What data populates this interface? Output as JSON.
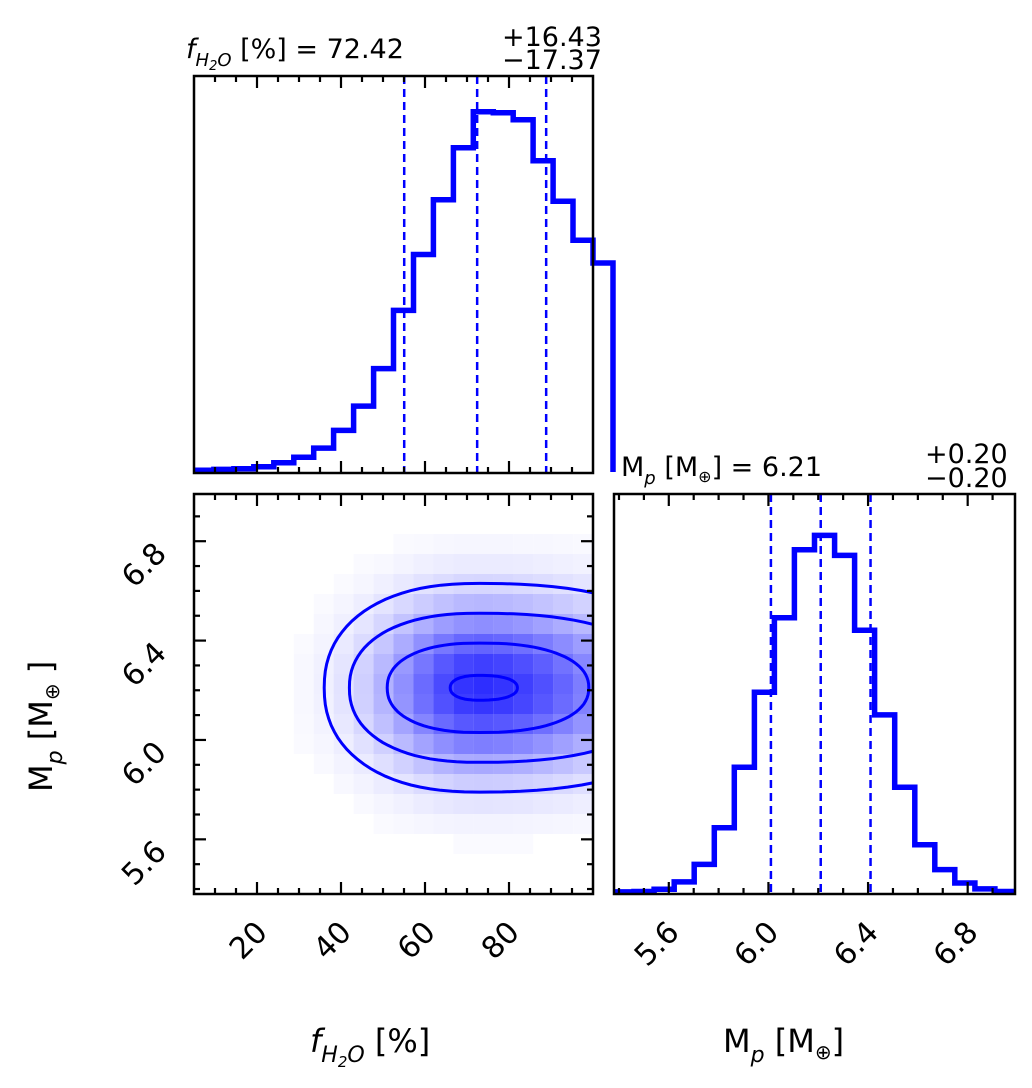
{
  "figure": {
    "type": "corner_plot"
  },
  "colors": {
    "series": "#0000ff",
    "frame": "#000000"
  },
  "titles": {
    "fh2o": {
      "main": "= 72.42",
      "upper": "+16.43",
      "lower": "−17.37"
    },
    "mp": {
      "main": "M",
      "sub": "p",
      "bracket": " [M",
      "sub2": "⊕",
      "tail": "] = 6.21",
      "upper": "+0.20",
      "lower": "−0.20"
    }
  },
  "axis_labels": {
    "fh2o": {
      "bracket": " [%]"
    },
    "mp_x": {
      "main": "M",
      "sub": "p",
      "bracket": " [M",
      "sub2": "⊕",
      "tail": "]"
    },
    "mp_y": {
      "main": "M",
      "sub": "p",
      "bracket": " [M",
      "sub2": "⊕",
      "tail": " ]"
    }
  },
  "chart_data": [
    {
      "type": "histogram",
      "variable": "f_H2O",
      "xlim": [
        5,
        100
      ],
      "x_ticks": [
        "20",
        "40",
        "60",
        "80"
      ],
      "bin_width": 4.75,
      "bin_start": 5,
      "counts": [
        0.005,
        0.007,
        0.009,
        0.014,
        0.025,
        0.04,
        0.065,
        0.113,
        0.179,
        0.281,
        0.439,
        0.591,
        0.74,
        0.881,
        0.979,
        0.976,
        0.957,
        0.846,
        0.736,
        0.63,
        0.568
      ],
      "quantiles": [
        55.05,
        72.42,
        88.85
      ],
      "median": 72.42,
      "err_plus": 16.43,
      "err_minus": 17.37
    },
    {
      "type": "heatmap",
      "xvar": "f_H2O",
      "yvar": "M_p",
      "xlim": [
        5,
        100
      ],
      "ylim": [
        5.38,
        6.99
      ],
      "x_ticks": [
        "20",
        "40",
        "60",
        "80"
      ],
      "y_ticks": [
        "5.6",
        "6.0",
        "6.4",
        "6.8"
      ],
      "density_peak": [
        73,
        6.21
      ],
      "contours": [
        {
          "level": "inner",
          "x_half": [
            7,
            9
          ],
          "y_half": [
            0.05,
            0.05
          ]
        },
        {
          "level": "second",
          "x_half": [
            22,
            26
          ],
          "y_half": [
            0.18,
            0.18
          ]
        },
        {
          "level": "third",
          "x_half": [
            31,
            45
          ],
          "y_half": [
            0.3,
            0.3
          ]
        },
        {
          "level": "outer",
          "x_half": [
            37,
            55
          ],
          "y_half": [
            0.42,
            0.42
          ]
        }
      ]
    },
    {
      "type": "histogram",
      "variable": "M_p",
      "xlim": [
        5.38,
        6.99
      ],
      "x_ticks": [
        "5.6",
        "6.0",
        "6.4",
        "6.8"
      ],
      "bin_width": 0.0805,
      "bin_start": 5.38,
      "counts": [
        0.003,
        0.004,
        0.01,
        0.03,
        0.077,
        0.176,
        0.339,
        0.541,
        0.742,
        0.925,
        0.964,
        0.91,
        0.708,
        0.48,
        0.285,
        0.13,
        0.063,
        0.027,
        0.011,
        0.004
      ],
      "quantiles": [
        6.01,
        6.21,
        6.41
      ],
      "median": 6.21,
      "err_plus": 0.2,
      "err_minus": 0.2
    }
  ]
}
